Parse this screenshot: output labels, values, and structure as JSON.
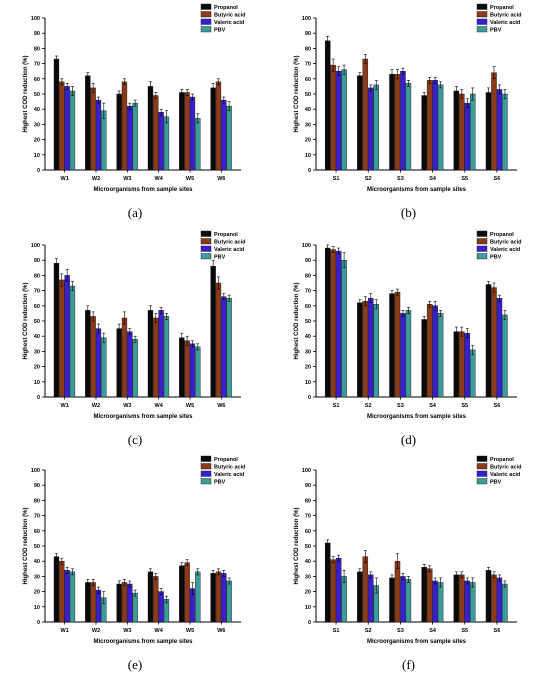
{
  "legend_labels": [
    "Propanol",
    "Butyric acid",
    "Valeric acid",
    "PBV"
  ],
  "series_colors": [
    "#0a0a0a",
    "#8b3a1a",
    "#3a1fd1",
    "#3c9c9a"
  ],
  "chart_data": [
    {
      "type": "bar",
      "panel_label": "(a)",
      "xlabel": "Microorganisms from sample sites",
      "ylabel": "Highest COD reduction (%)",
      "ylim": [
        0,
        100
      ],
      "yticks": [
        0,
        10,
        20,
        30,
        40,
        50,
        60,
        70,
        80,
        90,
        100
      ],
      "categories": [
        "W1",
        "W2",
        "W3",
        "W4",
        "W5",
        "W6"
      ],
      "legend_position": "top-right",
      "series": [
        {
          "name": "Propanol",
          "values": [
            73,
            62,
            50,
            55,
            51,
            54
          ],
          "errors": [
            2,
            2,
            2,
            3,
            2,
            3
          ]
        },
        {
          "name": "Butyric acid",
          "values": [
            58,
            54,
            58,
            49,
            51,
            58
          ],
          "errors": [
            2,
            3,
            2,
            2,
            2,
            2
          ]
        },
        {
          "name": "Valeric acid",
          "values": [
            55,
            46,
            42,
            38,
            48,
            46
          ],
          "errors": [
            2,
            2,
            2,
            2,
            2,
            2
          ]
        },
        {
          "name": "PBV",
          "values": [
            52,
            39,
            44,
            35,
            34,
            42
          ],
          "errors": [
            3,
            5,
            2,
            4,
            3,
            3
          ]
        }
      ]
    },
    {
      "type": "bar",
      "panel_label": "(b)",
      "xlabel": "Microorganisms from sample sites",
      "ylabel": "Highest COD reduction (%)",
      "ylim": [
        0,
        100
      ],
      "yticks": [
        0,
        10,
        20,
        30,
        40,
        50,
        60,
        70,
        80,
        90,
        100
      ],
      "categories": [
        "S1",
        "S2",
        "S3",
        "S4",
        "S5",
        "S6"
      ],
      "legend_position": "top-right",
      "series": [
        {
          "name": "Propanol",
          "values": [
            85,
            62,
            63,
            49,
            52,
            51
          ],
          "errors": [
            3,
            2,
            3,
            2,
            3,
            3
          ]
        },
        {
          "name": "Butyric acid",
          "values": [
            69,
            73,
            63,
            59,
            50,
            64
          ],
          "errors": [
            4,
            3,
            3,
            2,
            3,
            4
          ]
        },
        {
          "name": "Valeric acid",
          "values": [
            65,
            54,
            65,
            59,
            44,
            53
          ],
          "errors": [
            3,
            2,
            2,
            2,
            3,
            3
          ]
        },
        {
          "name": "PBV",
          "values": [
            66,
            56,
            57,
            56,
            50,
            50
          ],
          "errors": [
            3,
            3,
            2,
            2,
            4,
            3
          ]
        }
      ]
    },
    {
      "type": "bar",
      "panel_label": "(c)",
      "xlabel": "Microorganisms from sample sites",
      "ylabel": "Highest COD reduction (%)",
      "ylim": [
        0,
        100
      ],
      "yticks": [
        0,
        10,
        20,
        30,
        40,
        50,
        60,
        70,
        80,
        90,
        100
      ],
      "categories": [
        "W1",
        "W2",
        "W3",
        "W4",
        "W5",
        "W6"
      ],
      "legend_position": "top-right",
      "series": [
        {
          "name": "Propanol",
          "values": [
            88,
            57,
            45,
            57,
            39,
            86
          ],
          "errors": [
            3,
            3,
            3,
            3,
            3,
            4
          ]
        },
        {
          "name": "Butyric acid",
          "values": [
            77,
            53,
            52,
            52,
            37,
            75
          ],
          "errors": [
            4,
            3,
            4,
            3,
            3,
            4
          ]
        },
        {
          "name": "Valeric acid",
          "values": [
            80,
            45,
            43,
            57,
            35,
            66
          ],
          "errors": [
            4,
            3,
            2,
            2,
            2,
            2
          ]
        },
        {
          "name": "PBV",
          "values": [
            73,
            39,
            38,
            53,
            33,
            65
          ],
          "errors": [
            3,
            3,
            2,
            2,
            2,
            2
          ]
        }
      ]
    },
    {
      "type": "bar",
      "panel_label": "(d)",
      "xlabel": "Microorganisms from sample sites",
      "ylabel": "Highest COD reduction (%)",
      "ylim": [
        0,
        100
      ],
      "yticks": [
        0,
        10,
        20,
        30,
        40,
        50,
        60,
        70,
        80,
        90,
        100
      ],
      "categories": [
        "S1",
        "S2",
        "S3",
        "S4",
        "S5",
        "S6"
      ],
      "legend_position": "top-right",
      "series": [
        {
          "name": "Propanol",
          "values": [
            98,
            62,
            68,
            51,
            43,
            74
          ],
          "errors": [
            2,
            2,
            2,
            2,
            3,
            2
          ]
        },
        {
          "name": "Butyric acid",
          "values": [
            97,
            63,
            69,
            61,
            43,
            72
          ],
          "errors": [
            2,
            3,
            2,
            2,
            3,
            3
          ]
        },
        {
          "name": "Valeric acid",
          "values": [
            96,
            65,
            55,
            60,
            42,
            65
          ],
          "errors": [
            2,
            3,
            2,
            3,
            3,
            2
          ]
        },
        {
          "name": "PBV",
          "values": [
            90,
            61,
            57,
            55,
            31,
            54
          ],
          "errors": [
            5,
            3,
            2,
            2,
            3,
            3
          ]
        }
      ]
    },
    {
      "type": "bar",
      "panel_label": "(e)",
      "xlabel": "Microorganisms from sample sites",
      "ylabel": "Highest COD reduction (%)",
      "ylim": [
        0,
        100
      ],
      "yticks": [
        0,
        10,
        20,
        30,
        40,
        50,
        60,
        70,
        80,
        90,
        100
      ],
      "categories": [
        "W1",
        "W2",
        "W3",
        "W4",
        "W5",
        "W6"
      ],
      "legend_position": "top-right",
      "series": [
        {
          "name": "Propanol",
          "values": [
            43,
            26,
            25,
            33,
            37,
            32
          ],
          "errors": [
            2,
            2,
            2,
            2,
            2,
            2
          ]
        },
        {
          "name": "Butyric acid",
          "values": [
            40,
            26,
            26,
            30,
            39,
            33
          ],
          "errors": [
            2,
            2,
            2,
            2,
            2,
            2
          ]
        },
        {
          "name": "Valeric acid",
          "values": [
            34,
            21,
            25,
            20,
            22,
            32
          ],
          "errors": [
            2,
            2,
            2,
            2,
            4,
            2
          ]
        },
        {
          "name": "PBV",
          "values": [
            33,
            16,
            19,
            15,
            33,
            27
          ],
          "errors": [
            2,
            4,
            2,
            2,
            2,
            2
          ]
        }
      ]
    },
    {
      "type": "bar",
      "panel_label": "(f)",
      "xlabel": "Microorganisms from sample sites",
      "ylabel": "Highest COD reduction (%)",
      "ylim": [
        0,
        100
      ],
      "yticks": [
        0,
        10,
        20,
        30,
        40,
        50,
        60,
        70,
        80,
        90,
        100
      ],
      "categories": [
        "S1",
        "S2",
        "S3",
        "S4",
        "S5",
        "S6"
      ],
      "legend_position": "top-right",
      "series": [
        {
          "name": "Propanol",
          "values": [
            52,
            33,
            29,
            36,
            31,
            34
          ],
          "errors": [
            2,
            2,
            2,
            2,
            2,
            2
          ]
        },
        {
          "name": "Butyric acid",
          "values": [
            41,
            43,
            40,
            35,
            31,
            31
          ],
          "errors": [
            2,
            4,
            5,
            2,
            2,
            2
          ]
        },
        {
          "name": "Valeric acid",
          "values": [
            42,
            31,
            30,
            27,
            27,
            29
          ],
          "errors": [
            2,
            2,
            2,
            2,
            2,
            2
          ]
        },
        {
          "name": "PBV",
          "values": [
            30,
            24,
            28,
            26,
            26,
            25
          ],
          "errors": [
            4,
            5,
            2,
            3,
            3,
            2
          ]
        }
      ]
    }
  ]
}
